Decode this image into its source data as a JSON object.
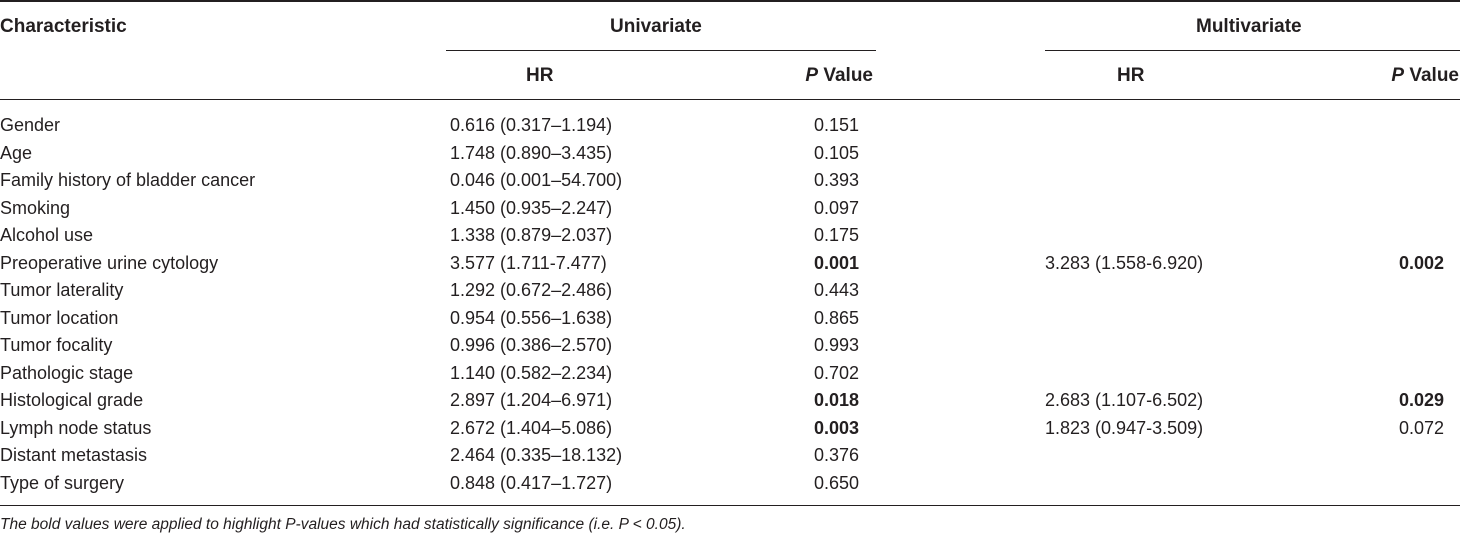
{
  "header": {
    "characteristic": "Characteristic",
    "univariate": "Univariate",
    "multivariate": "Multivariate",
    "hr": "HR",
    "p_italic": "P",
    "p_rest": " Value"
  },
  "rows": [
    {
      "label": "Gender",
      "uni_hr": "0.616 (0.317–1.194)",
      "uni_p": "0.151",
      "uni_p_bold": false,
      "mul_hr": "",
      "mul_p": "",
      "mul_p_bold": false
    },
    {
      "label": "Age",
      "uni_hr": "1.748 (0.890–3.435)",
      "uni_p": "0.105",
      "uni_p_bold": false,
      "mul_hr": "",
      "mul_p": "",
      "mul_p_bold": false
    },
    {
      "label": "Family history of bladder cancer",
      "uni_hr": "0.046 (0.001–54.700)",
      "uni_p": "0.393",
      "uni_p_bold": false,
      "mul_hr": "",
      "mul_p": "",
      "mul_p_bold": false
    },
    {
      "label": "Smoking",
      "uni_hr": "1.450 (0.935–2.247)",
      "uni_p": "0.097",
      "uni_p_bold": false,
      "mul_hr": "",
      "mul_p": "",
      "mul_p_bold": false
    },
    {
      "label": "Alcohol use",
      "uni_hr": "1.338 (0.879–2.037)",
      "uni_p": "0.175",
      "uni_p_bold": false,
      "mul_hr": "",
      "mul_p": "",
      "mul_p_bold": false
    },
    {
      "label": "Preoperative urine cytology",
      "uni_hr": "3.577 (1.711-7.477)",
      "uni_p": "0.001",
      "uni_p_bold": true,
      "mul_hr": "3.283 (1.558-6.920)",
      "mul_p": "0.002",
      "mul_p_bold": true
    },
    {
      "label": "Tumor laterality",
      "uni_hr": "1.292 (0.672–2.486)",
      "uni_p": "0.443",
      "uni_p_bold": false,
      "mul_hr": "",
      "mul_p": "",
      "mul_p_bold": false
    },
    {
      "label": "Tumor location",
      "uni_hr": "0.954 (0.556–1.638)",
      "uni_p": "0.865",
      "uni_p_bold": false,
      "mul_hr": "",
      "mul_p": "",
      "mul_p_bold": false
    },
    {
      "label": "Tumor focality",
      "uni_hr": "0.996 (0.386–2.570)",
      "uni_p": "0.993",
      "uni_p_bold": false,
      "mul_hr": "",
      "mul_p": "",
      "mul_p_bold": false
    },
    {
      "label": "Pathologic stage",
      "uni_hr": "1.140 (0.582–2.234)",
      "uni_p": "0.702",
      "uni_p_bold": false,
      "mul_hr": "",
      "mul_p": "",
      "mul_p_bold": false
    },
    {
      "label": "Histological grade",
      "uni_hr": "2.897 (1.204–6.971)",
      "uni_p": "0.018",
      "uni_p_bold": true,
      "mul_hr": "2.683 (1.107-6.502)",
      "mul_p": "0.029",
      "mul_p_bold": true
    },
    {
      "label": "Lymph node status",
      "uni_hr": "2.672 (1.404–5.086)",
      "uni_p": "0.003",
      "uni_p_bold": true,
      "mul_hr": "1.823 (0.947-3.509)",
      "mul_p": "0.072",
      "mul_p_bold": false
    },
    {
      "label": "Distant metastasis",
      "uni_hr": "2.464 (0.335–18.132)",
      "uni_p": "0.376",
      "uni_p_bold": false,
      "mul_hr": "",
      "mul_p": "",
      "mul_p_bold": false
    },
    {
      "label": "Type of surgery",
      "uni_hr": "0.848 (0.417–1.727)",
      "uni_p": "0.650",
      "uni_p_bold": false,
      "mul_hr": "",
      "mul_p": "",
      "mul_p_bold": false
    }
  ],
  "footnote": "The bold values were applied to highlight P-values which had statistically significance (i.e. P < 0.05)."
}
